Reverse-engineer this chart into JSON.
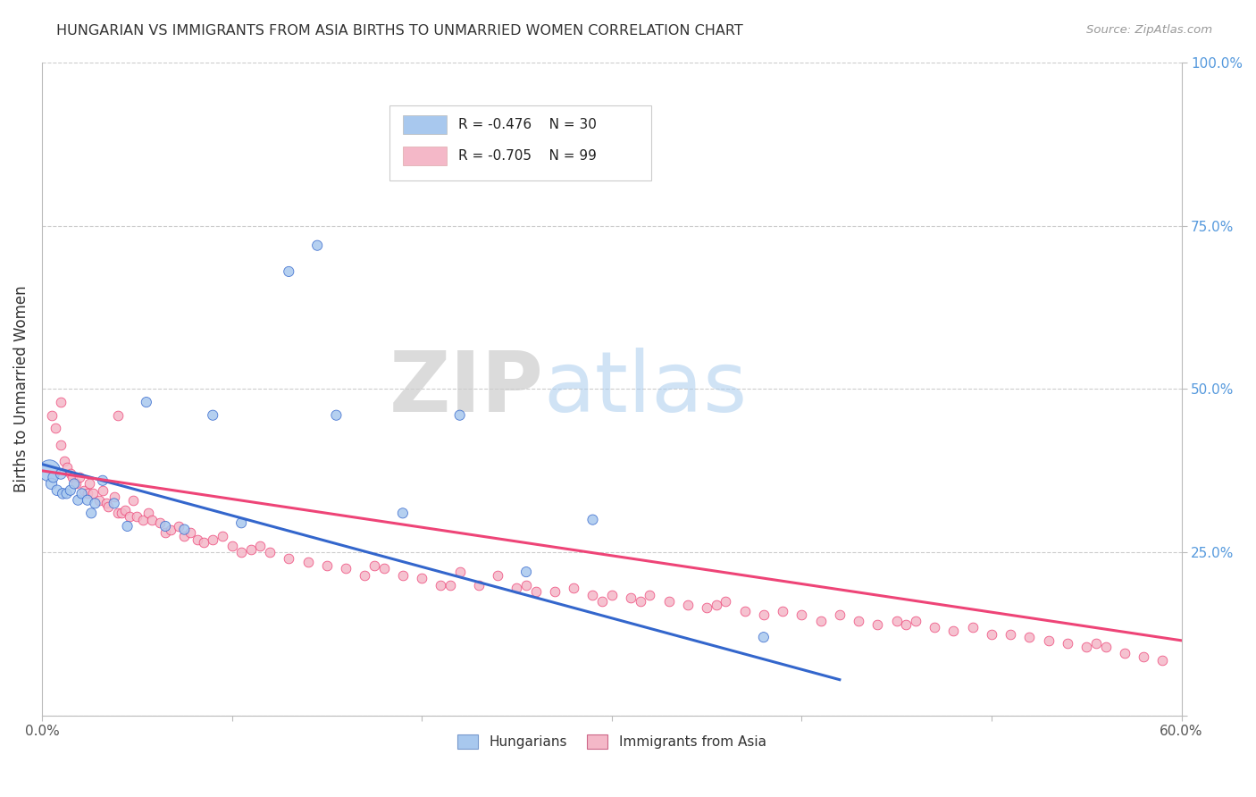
{
  "title": "HUNGARIAN VS IMMIGRANTS FROM ASIA BIRTHS TO UNMARRIED WOMEN CORRELATION CHART",
  "source": "Source: ZipAtlas.com",
  "ylabel": "Births to Unmarried Women",
  "xlim": [
    0.0,
    0.6
  ],
  "ylim": [
    0.0,
    1.0
  ],
  "xticks": [
    0.0,
    0.1,
    0.2,
    0.3,
    0.4,
    0.5,
    0.6
  ],
  "xticklabels": [
    "0.0%",
    "",
    "",
    "",
    "",
    "",
    "60.0%"
  ],
  "yticks_right": [
    0.0,
    0.25,
    0.5,
    0.75,
    1.0
  ],
  "yticklabels_right": [
    "",
    "25.0%",
    "50.0%",
    "75.0%",
    "100.0%"
  ],
  "bg_color": "#ffffff",
  "grid_color": "#cccccc",
  "watermark_zip": "ZIP",
  "watermark_atlas": "atlas",
  "blue_color": "#A8C8EE",
  "pink_color": "#F4B8C8",
  "blue_line_color": "#3366CC",
  "pink_line_color": "#EE4477",
  "legend_r_blue": "R = -0.476",
  "legend_n_blue": "N = 30",
  "legend_r_pink": "R = -0.705",
  "legend_n_pink": "N = 99",
  "legend_label_blue": "Hungarians",
  "legend_label_pink": "Immigrants from Asia",
  "hungarian_x": [
    0.004,
    0.005,
    0.006,
    0.008,
    0.01,
    0.011,
    0.013,
    0.015,
    0.017,
    0.019,
    0.021,
    0.024,
    0.026,
    0.028,
    0.032,
    0.038,
    0.045,
    0.055,
    0.065,
    0.075,
    0.09,
    0.105,
    0.13,
    0.145,
    0.155,
    0.19,
    0.22,
    0.255,
    0.29,
    0.38
  ],
  "hungarian_y": [
    0.375,
    0.355,
    0.365,
    0.345,
    0.37,
    0.34,
    0.34,
    0.345,
    0.355,
    0.33,
    0.34,
    0.33,
    0.31,
    0.325,
    0.36,
    0.325,
    0.29,
    0.48,
    0.29,
    0.285,
    0.46,
    0.295,
    0.68,
    0.72,
    0.46,
    0.31,
    0.46,
    0.22,
    0.3,
    0.12
  ],
  "hungarian_size": [
    300,
    80,
    70,
    70,
    70,
    70,
    65,
    65,
    65,
    65,
    65,
    65,
    65,
    65,
    65,
    65,
    65,
    65,
    65,
    65,
    65,
    65,
    65,
    65,
    65,
    65,
    65,
    65,
    65,
    65
  ],
  "asia_x": [
    0.005,
    0.007,
    0.01,
    0.012,
    0.013,
    0.015,
    0.016,
    0.018,
    0.02,
    0.022,
    0.024,
    0.025,
    0.027,
    0.03,
    0.032,
    0.034,
    0.035,
    0.038,
    0.04,
    0.042,
    0.044,
    0.046,
    0.048,
    0.05,
    0.053,
    0.056,
    0.058,
    0.062,
    0.065,
    0.068,
    0.072,
    0.075,
    0.078,
    0.082,
    0.085,
    0.09,
    0.095,
    0.1,
    0.105,
    0.11,
    0.115,
    0.12,
    0.13,
    0.14,
    0.15,
    0.16,
    0.17,
    0.175,
    0.18,
    0.19,
    0.2,
    0.21,
    0.215,
    0.22,
    0.23,
    0.24,
    0.25,
    0.255,
    0.26,
    0.27,
    0.28,
    0.29,
    0.295,
    0.3,
    0.31,
    0.315,
    0.32,
    0.33,
    0.34,
    0.35,
    0.355,
    0.36,
    0.37,
    0.38,
    0.39,
    0.4,
    0.41,
    0.42,
    0.43,
    0.44,
    0.45,
    0.455,
    0.46,
    0.47,
    0.48,
    0.49,
    0.5,
    0.51,
    0.52,
    0.53,
    0.54,
    0.55,
    0.555,
    0.56,
    0.57,
    0.58,
    0.59,
    0.01,
    0.04
  ],
  "asia_y": [
    0.46,
    0.44,
    0.415,
    0.39,
    0.38,
    0.37,
    0.365,
    0.355,
    0.365,
    0.345,
    0.34,
    0.355,
    0.34,
    0.33,
    0.345,
    0.325,
    0.32,
    0.335,
    0.31,
    0.31,
    0.315,
    0.305,
    0.33,
    0.305,
    0.3,
    0.31,
    0.3,
    0.295,
    0.28,
    0.285,
    0.29,
    0.275,
    0.28,
    0.27,
    0.265,
    0.27,
    0.275,
    0.26,
    0.25,
    0.255,
    0.26,
    0.25,
    0.24,
    0.235,
    0.23,
    0.225,
    0.215,
    0.23,
    0.225,
    0.215,
    0.21,
    0.2,
    0.2,
    0.22,
    0.2,
    0.215,
    0.195,
    0.2,
    0.19,
    0.19,
    0.195,
    0.185,
    0.175,
    0.185,
    0.18,
    0.175,
    0.185,
    0.175,
    0.17,
    0.165,
    0.17,
    0.175,
    0.16,
    0.155,
    0.16,
    0.155,
    0.145,
    0.155,
    0.145,
    0.14,
    0.145,
    0.14,
    0.145,
    0.135,
    0.13,
    0.135,
    0.125,
    0.125,
    0.12,
    0.115,
    0.11,
    0.105,
    0.11,
    0.105,
    0.095,
    0.09,
    0.085,
    0.48,
    0.46
  ],
  "blue_trendline_x": [
    0.0,
    0.42
  ],
  "blue_trendline_y": [
    0.385,
    0.055
  ],
  "pink_trendline_x": [
    0.0,
    0.6
  ],
  "pink_trendline_y": [
    0.375,
    0.115
  ]
}
